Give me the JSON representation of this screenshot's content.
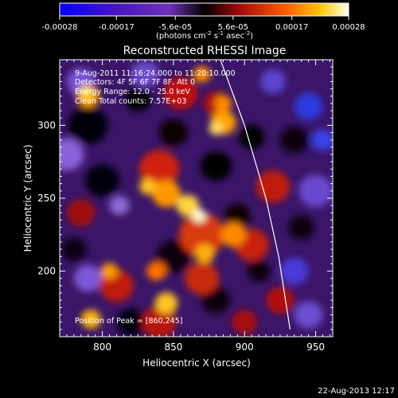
{
  "colorbar": {
    "ticks": [
      "-0.00028",
      "-0.00017",
      "-5.6e-05",
      "5.6e-05",
      "0.00017",
      "0.00028"
    ],
    "tick_values": [
      -0.00028,
      -0.00017,
      -5.6e-05,
      5.6e-05,
      0.00017,
      0.00028
    ],
    "units_prefix": "(photons cm",
    "units_exp1": "-2",
    "units_mid": " s",
    "units_exp2": "-1",
    "units_mid2": " asec",
    "units_exp3": "-2",
    "units_suffix": ")"
  },
  "chart_data": {
    "type": "heatmap",
    "title": "Reconstructed RHESSI Image",
    "xlabel": "Heliocentric X (arcsec)",
    "ylabel": "Heliocentric Y (arcsec)",
    "xlim": [
      770,
      962
    ],
    "ylim": [
      155,
      345
    ],
    "xticks": [
      800,
      850,
      900,
      950
    ],
    "yticks": [
      200,
      250,
      300
    ],
    "colormap": "black-purple-red-yellow-white",
    "peak_position": [
      860,
      245
    ],
    "limb_arc": [
      [
        883,
        345
      ],
      [
        900,
        300
      ],
      [
        915,
        250
      ],
      [
        924,
        210
      ],
      [
        932,
        160
      ]
    ],
    "annotations": [
      "9-Aug-2011 11:16:24.000 to 11:20:10.000",
      "Detectors: 4F 5F 6F 7F 8F, Att 0",
      "Energy Range: 12.0 - 25.0 keV",
      "Clean    Total counts: 7.57E+03",
      "Position of Peak = [860,245]"
    ]
  },
  "footer": {
    "timestamp": "22-Aug-2013 12:17"
  }
}
